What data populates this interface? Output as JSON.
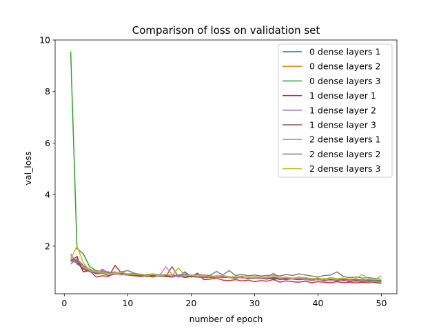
{
  "chart_data": {
    "type": "line",
    "title": "Comparison of loss on validation set",
    "xlabel": "number of epoch",
    "ylabel": "val_loss",
    "xlim": [
      -1.45,
      52.45
    ],
    "ylim": [
      0.15,
      10.0
    ],
    "xticks": [
      0,
      10,
      20,
      30,
      40,
      50
    ],
    "yticks": [
      2,
      4,
      6,
      8,
      10
    ],
    "grid": false,
    "legend_position": "top-right",
    "x": [
      1,
      2,
      3,
      4,
      5,
      6,
      7,
      8,
      9,
      10,
      11,
      12,
      13,
      14,
      15,
      16,
      17,
      18,
      19,
      20,
      21,
      22,
      23,
      24,
      25,
      26,
      27,
      28,
      29,
      30,
      31,
      32,
      33,
      34,
      35,
      36,
      37,
      38,
      39,
      40,
      41,
      42,
      43,
      44,
      45,
      46,
      47,
      48,
      49,
      50
    ],
    "series": [
      {
        "name": "0 dense layers 1",
        "color": "#1f77b4",
        "values": [
          1.45,
          1.35,
          1.1,
          1.05,
          0.95,
          1.05,
          0.98,
          0.92,
          1.0,
          0.9,
          0.88,
          0.85,
          0.9,
          0.87,
          0.82,
          0.86,
          0.88,
          0.8,
          1.0,
          0.82,
          0.8,
          0.78,
          0.8,
          0.85,
          0.8,
          0.78,
          0.76,
          0.78,
          0.75,
          0.76,
          0.74,
          0.75,
          0.72,
          0.73,
          0.7,
          0.74,
          0.72,
          0.7,
          0.68,
          0.7,
          0.68,
          0.67,
          0.69,
          0.66,
          0.68,
          0.65,
          0.66,
          0.64,
          0.66,
          0.63
        ]
      },
      {
        "name": "0 dense layers 2",
        "color": "#ff7f0e",
        "values": [
          1.5,
          1.4,
          1.2,
          1.05,
          1.0,
          0.95,
          0.98,
          0.92,
          0.95,
          0.9,
          0.88,
          0.9,
          0.85,
          0.88,
          0.84,
          0.86,
          0.82,
          0.88,
          0.85,
          0.84,
          0.82,
          0.8,
          0.83,
          0.8,
          0.78,
          0.82,
          0.79,
          0.77,
          0.8,
          0.76,
          0.78,
          0.75,
          0.77,
          0.74,
          0.76,
          0.73,
          0.75,
          0.72,
          0.74,
          0.71,
          0.73,
          0.7,
          0.72,
          0.69,
          0.71,
          0.68,
          0.7,
          0.67,
          0.69,
          0.66
        ]
      },
      {
        "name": "0 dense layers 3",
        "color": "#2ca02c",
        "values": [
          9.55,
          1.9,
          1.7,
          1.2,
          1.05,
          1.0,
          0.95,
          0.92,
          0.9,
          0.92,
          0.88,
          0.86,
          0.9,
          0.85,
          0.87,
          0.84,
          0.86,
          0.83,
          0.85,
          0.82,
          0.84,
          0.81,
          0.83,
          0.8,
          0.82,
          0.79,
          0.81,
          0.78,
          0.8,
          0.77,
          0.79,
          0.76,
          0.78,
          0.75,
          0.77,
          0.74,
          0.76,
          0.73,
          0.75,
          0.72,
          0.74,
          0.72,
          0.7,
          0.71,
          0.69,
          0.7,
          0.68,
          0.69,
          0.67,
          0.66
        ]
      },
      {
        "name": "1 dense layer 1",
        "color": "#d62728",
        "values": [
          1.4,
          1.6,
          1.0,
          1.05,
          0.8,
          0.85,
          0.82,
          1.25,
          0.95,
          0.9,
          0.85,
          0.82,
          0.85,
          0.8,
          0.88,
          0.82,
          0.8,
          0.85,
          0.78,
          0.82,
          0.95,
          0.7,
          0.72,
          0.76,
          0.68,
          0.66,
          0.7,
          0.65,
          0.68,
          0.62,
          0.66,
          0.64,
          0.7,
          0.6,
          0.65,
          0.62,
          0.6,
          0.64,
          0.58,
          0.62,
          0.6,
          0.58,
          0.62,
          0.58,
          0.6,
          0.57,
          0.59,
          0.58,
          0.6,
          0.57
        ]
      },
      {
        "name": "1 dense layer 2",
        "color": "#9467bd",
        "values": [
          1.7,
          1.3,
          1.15,
          1.0,
          0.95,
          1.1,
          0.95,
          1.0,
          0.9,
          0.88,
          0.92,
          0.85,
          0.88,
          0.86,
          0.84,
          0.88,
          0.82,
          0.85,
          0.9,
          0.8,
          0.84,
          0.82,
          0.8,
          0.78,
          0.82,
          0.78,
          0.8,
          0.76,
          0.78,
          0.75,
          0.77,
          0.74,
          0.76,
          0.72,
          0.75,
          0.72,
          0.7,
          0.72,
          0.68,
          0.7,
          0.67,
          0.69,
          0.66,
          0.68,
          0.65,
          0.66,
          0.64,
          0.65,
          0.63,
          0.62
        ]
      },
      {
        "name": "1 dense layer 3",
        "color": "#8c564b",
        "values": [
          1.5,
          1.45,
          1.0,
          1.1,
          0.92,
          0.95,
          0.85,
          0.92,
          0.9,
          0.88,
          0.85,
          0.88,
          0.82,
          0.86,
          0.84,
          0.82,
          1.2,
          0.8,
          0.85,
          0.82,
          0.8,
          0.85,
          0.78,
          0.82,
          0.8,
          0.78,
          0.76,
          0.8,
          0.74,
          0.78,
          0.75,
          0.72,
          0.78,
          0.7,
          0.74,
          0.72,
          0.7,
          0.74,
          0.68,
          0.72,
          0.66,
          0.7,
          0.64,
          0.68,
          0.62,
          0.66,
          0.6,
          0.64,
          0.58,
          0.55
        ]
      },
      {
        "name": "2 dense layers 1",
        "color": "#e377c2",
        "values": [
          1.6,
          1.5,
          1.2,
          1.1,
          1.0,
          1.05,
          0.92,
          0.95,
          0.88,
          0.92,
          0.95,
          0.9,
          0.86,
          0.92,
          0.84,
          1.2,
          0.9,
          0.82,
          0.86,
          0.88,
          0.84,
          0.82,
          0.86,
          0.8,
          0.84,
          0.78,
          0.82,
          0.76,
          0.8,
          0.78,
          0.76,
          0.8,
          0.95,
          0.74,
          0.78,
          0.72,
          0.76,
          0.7,
          0.74,
          0.68,
          0.72,
          0.66,
          0.7,
          0.64,
          0.68,
          0.62,
          0.66,
          0.6,
          0.64,
          0.58
        ]
      },
      {
        "name": "2 dense layers 2",
        "color": "#7f7f7f",
        "values": [
          1.3,
          1.5,
          1.25,
          1.1,
          1.0,
          0.95,
          1.0,
          0.92,
          1.0,
          1.05,
          0.95,
          0.88,
          0.9,
          0.92,
          0.88,
          0.9,
          0.86,
          0.88,
          0.92,
          0.86,
          0.9,
          0.88,
          0.86,
          1.02,
          0.88,
          1.05,
          0.86,
          0.9,
          0.85,
          0.88,
          0.84,
          0.86,
          0.88,
          0.84,
          0.9,
          0.86,
          0.92,
          0.88,
          0.84,
          0.8,
          0.86,
          0.88,
          1.0,
          0.82,
          0.78,
          0.8,
          0.76,
          0.78,
          0.74,
          0.72
        ]
      },
      {
        "name": "2 dense layers 3",
        "color": "#bcbd22",
        "values": [
          1.5,
          2.0,
          1.35,
          1.05,
          1.0,
          0.98,
          0.92,
          0.95,
          0.98,
          0.92,
          0.9,
          0.92,
          0.88,
          0.9,
          0.85,
          0.9,
          0.86,
          1.15,
          0.85,
          0.88,
          0.84,
          0.86,
          0.82,
          0.84,
          0.86,
          0.82,
          0.8,
          0.84,
          0.78,
          0.82,
          0.8,
          0.78,
          0.82,
          0.78,
          0.8,
          0.76,
          0.8,
          0.78,
          0.74,
          0.76,
          0.72,
          0.78,
          0.74,
          0.76,
          0.72,
          0.74,
          0.9,
          0.72,
          0.7,
          0.85
        ]
      }
    ]
  }
}
